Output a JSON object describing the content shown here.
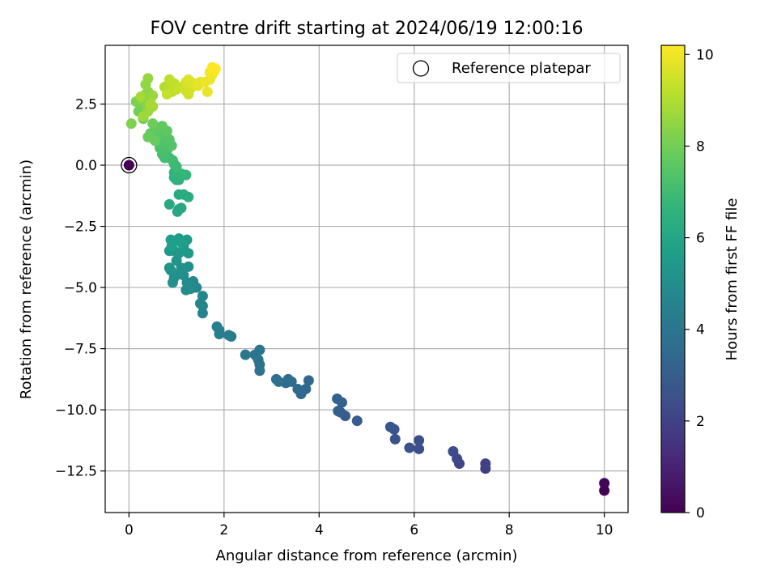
{
  "chart_data": {
    "type": "scatter",
    "title": "FOV centre drift starting at 2024/06/19 12:00:16",
    "xlabel": "Angular distance from reference (arcmin)",
    "ylabel": "Rotation from reference (arcmin)",
    "xlim": [
      -0.5,
      10.5
    ],
    "ylim": [
      -14.2,
      4.9
    ],
    "xticks": [
      0,
      2,
      4,
      6,
      8,
      10
    ],
    "xtick_labels": [
      "0",
      "2",
      "4",
      "6",
      "8",
      "10"
    ],
    "yticks": [
      -12.5,
      -10.0,
      -7.5,
      -5.0,
      -2.5,
      0.0,
      2.5
    ],
    "ytick_labels": [
      "−12.5",
      "−10.0",
      "−7.5",
      "−5.0",
      "−2.5",
      "0.0",
      "2.5"
    ],
    "grid": true,
    "legend": {
      "position": "top-right",
      "entries": [
        {
          "label": "Reference platepar",
          "marker": "open-circle"
        }
      ]
    },
    "colorbar": {
      "label": "Hours from first FF file",
      "colormap": "viridis",
      "range": [
        0,
        10.2
      ],
      "ticks": [
        0,
        2,
        4,
        6,
        8,
        10
      ],
      "tick_labels": [
        "0",
        "2",
        "4",
        "6",
        "8",
        "10"
      ]
    },
    "reference_point": {
      "x": 0.0,
      "y": 0.0,
      "hours": 0.0
    },
    "series": [
      {
        "points": [
          [
            10.0,
            -13.3,
            0.0
          ],
          [
            10.0,
            -13.0,
            0.1
          ],
          [
            7.5,
            -12.4,
            1.9
          ],
          [
            7.5,
            -12.2,
            1.95
          ],
          [
            6.95,
            -12.2,
            2.1
          ],
          [
            6.9,
            -12.0,
            2.15
          ],
          [
            6.82,
            -11.7,
            2.25
          ],
          [
            6.1,
            -11.6,
            2.45
          ],
          [
            6.1,
            -11.25,
            2.5
          ],
          [
            5.9,
            -11.55,
            2.55
          ],
          [
            5.6,
            -11.2,
            2.65
          ],
          [
            5.58,
            -10.8,
            2.7
          ],
          [
            5.5,
            -10.7,
            2.75
          ],
          [
            4.8,
            -10.45,
            2.9
          ],
          [
            4.55,
            -10.25,
            3.0
          ],
          [
            4.45,
            -10.1,
            3.05
          ],
          [
            4.4,
            -10.05,
            3.1
          ],
          [
            4.48,
            -9.7,
            3.15
          ],
          [
            4.38,
            -9.55,
            3.2
          ],
          [
            3.78,
            -8.8,
            3.35
          ],
          [
            3.72,
            -9.15,
            3.4
          ],
          [
            3.62,
            -9.35,
            3.45
          ],
          [
            3.55,
            -9.15,
            3.5
          ],
          [
            3.42,
            -8.85,
            3.55
          ],
          [
            3.3,
            -8.9,
            3.6
          ],
          [
            3.35,
            -8.75,
            3.62
          ],
          [
            3.15,
            -8.85,
            3.7
          ],
          [
            3.1,
            -8.75,
            3.75
          ],
          [
            2.75,
            -8.4,
            3.85
          ],
          [
            2.75,
            -8.15,
            3.9
          ],
          [
            2.72,
            -7.95,
            3.92
          ],
          [
            2.75,
            -7.55,
            3.95
          ],
          [
            2.65,
            -7.75,
            4.0
          ],
          [
            2.45,
            -7.75,
            4.05
          ],
          [
            2.15,
            -7.0,
            4.2
          ],
          [
            2.1,
            -6.95,
            4.25
          ],
          [
            1.9,
            -6.9,
            4.3
          ],
          [
            1.9,
            -6.75,
            4.35
          ],
          [
            1.85,
            -6.6,
            4.4
          ],
          [
            1.55,
            -6.05,
            4.55
          ],
          [
            1.55,
            -5.75,
            4.6
          ],
          [
            1.5,
            -5.65,
            4.65
          ],
          [
            1.55,
            -5.35,
            4.7
          ],
          [
            1.42,
            -5.0,
            4.75
          ],
          [
            1.35,
            -4.75,
            4.8
          ],
          [
            1.3,
            -5.05,
            4.85
          ],
          [
            1.2,
            -5.1,
            4.9
          ],
          [
            1.22,
            -4.8,
            4.95
          ],
          [
            1.15,
            -4.5,
            5.0
          ],
          [
            1.25,
            -4.15,
            5.05
          ],
          [
            1.1,
            -4.2,
            5.1
          ],
          [
            1.05,
            -4.45,
            5.12
          ],
          [
            0.95,
            -4.6,
            5.15
          ],
          [
            0.92,
            -4.8,
            5.2
          ],
          [
            0.88,
            -4.3,
            5.25
          ],
          [
            0.85,
            -4.2,
            5.28
          ],
          [
            1.0,
            -3.9,
            5.3
          ],
          [
            1.05,
            -3.6,
            5.35
          ],
          [
            0.95,
            -3.5,
            5.4
          ],
          [
            0.85,
            -3.5,
            5.42
          ],
          [
            1.25,
            -3.6,
            5.45
          ],
          [
            1.15,
            -3.3,
            5.5
          ],
          [
            1.22,
            -3.05,
            5.55
          ],
          [
            1.05,
            -3.0,
            5.6
          ],
          [
            0.95,
            -3.1,
            5.62
          ],
          [
            0.88,
            -3.05,
            5.65
          ],
          [
            1.12,
            -3.2,
            5.68
          ],
          [
            0.9,
            -3.3,
            5.7
          ],
          [
            1.05,
            -1.8,
            6.0
          ],
          [
            1.02,
            -1.9,
            6.05
          ],
          [
            1.1,
            -1.75,
            6.1
          ],
          [
            0.85,
            -1.6,
            6.15
          ],
          [
            1.05,
            -1.2,
            6.2
          ],
          [
            1.25,
            -1.3,
            6.25
          ],
          [
            1.15,
            -1.2,
            6.3
          ],
          [
            1.0,
            -0.6,
            6.45
          ],
          [
            0.95,
            -0.5,
            6.5
          ],
          [
            1.05,
            -0.6,
            6.55
          ],
          [
            0.95,
            -0.3,
            6.6
          ],
          [
            1.0,
            -0.2,
            6.65
          ],
          [
            1.2,
            -0.4,
            6.7
          ],
          [
            1.1,
            -0.35,
            6.75
          ],
          [
            0.95,
            0.05,
            6.9
          ],
          [
            1.0,
            -0.05,
            6.95
          ],
          [
            0.92,
            0.2,
            7.0
          ],
          [
            0.85,
            0.3,
            7.05
          ],
          [
            0.75,
            0.3,
            7.1
          ],
          [
            0.7,
            0.45,
            7.15
          ],
          [
            0.8,
            0.6,
            7.2
          ],
          [
            0.65,
            0.7,
            7.25
          ],
          [
            0.75,
            0.9,
            7.3
          ],
          [
            0.6,
            0.95,
            7.35
          ],
          [
            0.9,
            0.8,
            7.4
          ],
          [
            0.85,
            1.05,
            7.45
          ],
          [
            0.7,
            1.3,
            7.5
          ],
          [
            0.55,
            1.2,
            7.55
          ],
          [
            0.8,
            1.4,
            7.6
          ],
          [
            0.7,
            1.6,
            7.65
          ],
          [
            0.6,
            1.55,
            7.7
          ],
          [
            0.45,
            1.3,
            7.75
          ],
          [
            0.55,
            1.0,
            7.8
          ],
          [
            0.4,
            1.15,
            7.85
          ],
          [
            0.5,
            1.7,
            7.9
          ],
          [
            0.3,
            1.9,
            7.95
          ],
          [
            0.2,
            2.2,
            8.0
          ],
          [
            0.35,
            2.3,
            8.05
          ],
          [
            0.25,
            2.5,
            8.1
          ],
          [
            0.15,
            2.6,
            8.15
          ],
          [
            0.05,
            1.7,
            8.2
          ],
          [
            0.3,
            2.6,
            8.3
          ],
          [
            0.35,
            2.9,
            8.35
          ],
          [
            0.45,
            2.7,
            8.4
          ],
          [
            0.4,
            3.0,
            8.45
          ],
          [
            0.35,
            3.3,
            8.5
          ],
          [
            0.4,
            3.55,
            8.55
          ],
          [
            0.5,
            2.85,
            8.6
          ],
          [
            0.4,
            2.2,
            8.65
          ],
          [
            0.3,
            2.0,
            8.7
          ],
          [
            0.5,
            2.4,
            8.75
          ],
          [
            0.25,
            2.8,
            8.8
          ],
          [
            0.45,
            2.5,
            8.85
          ],
          [
            0.75,
            3.2,
            9.0
          ],
          [
            0.8,
            3.05,
            9.05
          ],
          [
            0.85,
            3.3,
            9.1
          ],
          [
            0.9,
            3.0,
            9.15
          ],
          [
            0.85,
            3.5,
            9.2
          ],
          [
            0.95,
            3.35,
            9.25
          ],
          [
            0.8,
            2.9,
            9.3
          ],
          [
            1.0,
            3.1,
            9.35
          ],
          [
            1.1,
            3.2,
            9.4
          ],
          [
            1.2,
            3.05,
            9.45
          ],
          [
            1.25,
            2.9,
            9.5
          ],
          [
            1.3,
            3.15,
            9.55
          ],
          [
            1.2,
            3.4,
            9.6
          ],
          [
            1.35,
            3.35,
            9.65
          ],
          [
            1.25,
            3.5,
            9.7
          ],
          [
            1.4,
            3.3,
            9.75
          ],
          [
            1.5,
            3.4,
            9.8
          ],
          [
            1.45,
            3.25,
            9.85
          ],
          [
            1.6,
            3.4,
            9.9
          ],
          [
            1.65,
            3.0,
            9.92
          ],
          [
            1.7,
            3.5,
            9.95
          ],
          [
            1.75,
            3.7,
            10.0
          ],
          [
            1.7,
            3.8,
            10.05
          ],
          [
            1.8,
            3.85,
            10.1
          ],
          [
            1.75,
            4.0,
            10.15
          ],
          [
            1.82,
            3.95,
            10.2
          ]
        ]
      }
    ]
  }
}
